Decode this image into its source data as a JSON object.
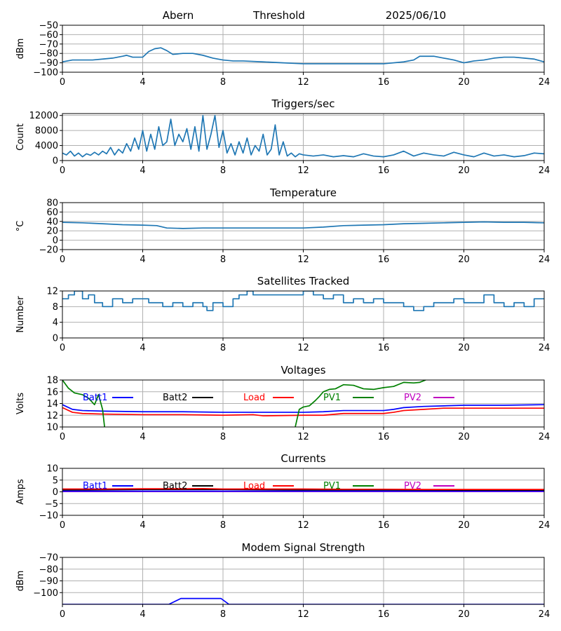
{
  "header": {
    "station": "Abern",
    "mode": "Threshold",
    "date": "2025/06/10"
  },
  "colors": {
    "default_line": "#1f77b4",
    "batt1": "#0000ff",
    "batt2": "#000000",
    "load": "#ff0000",
    "pv1": "#008000",
    "pv2": "#bf00bf",
    "grid": "#b0b0b0"
  },
  "chart_data": [
    {
      "id": "threshold",
      "type": "line",
      "title": "",
      "ylabel": "dBm",
      "xlim": [
        0,
        24
      ],
      "ylim": [
        -100,
        -50
      ],
      "xticks": [
        0,
        4,
        8,
        12,
        16,
        20,
        24
      ],
      "yticks": [
        -100,
        -90,
        -80,
        -70,
        -60,
        -50
      ],
      "grid": true,
      "series": [
        {
          "color_key": "default_line",
          "x": [
            0,
            0.5,
            1,
            1.5,
            2,
            2.5,
            3,
            3.2,
            3.5,
            4,
            4.3,
            4.6,
            4.9,
            5.2,
            5.5,
            6,
            6.5,
            7,
            7.5,
            8,
            8.5,
            9,
            10,
            11,
            12,
            13,
            14,
            15,
            16,
            17,
            17.5,
            17.8,
            18.5,
            19,
            19.5,
            20,
            20.5,
            21,
            21.5,
            22,
            22.5,
            23,
            23.5,
            24
          ],
          "y": [
            -89,
            -87,
            -87,
            -87,
            -86,
            -85,
            -83,
            -82,
            -84,
            -84,
            -78,
            -75,
            -74,
            -77,
            -81,
            -80,
            -80,
            -82,
            -85,
            -87,
            -88,
            -88,
            -89,
            -90,
            -91,
            -91,
            -91,
            -91,
            -91,
            -89,
            -87,
            -83,
            -83,
            -85,
            -87,
            -90,
            -88,
            -87,
            -85,
            -84,
            -84,
            -85,
            -86,
            -89
          ]
        }
      ]
    },
    {
      "id": "triggers",
      "type": "line",
      "title": "Triggers/sec",
      "ylabel": "Count",
      "xlim": [
        0,
        24
      ],
      "ylim": [
        0,
        12500
      ],
      "xticks": [
        0,
        4,
        8,
        12,
        16,
        20,
        24
      ],
      "yticks": [
        0,
        4000,
        8000,
        12000
      ],
      "grid": true,
      "series": [
        {
          "color_key": "default_line",
          "x": [
            0,
            0.2,
            0.4,
            0.6,
            0.8,
            1,
            1.2,
            1.4,
            1.6,
            1.8,
            2,
            2.2,
            2.4,
            2.6,
            2.8,
            3,
            3.2,
            3.4,
            3.6,
            3.8,
            4,
            4.2,
            4.4,
            4.6,
            4.8,
            5,
            5.2,
            5.4,
            5.6,
            5.8,
            6,
            6.2,
            6.4,
            6.6,
            6.8,
            7,
            7.2,
            7.4,
            7.6,
            7.8,
            8,
            8.2,
            8.4,
            8.6,
            8.8,
            9,
            9.2,
            9.4,
            9.6,
            9.8,
            10,
            10.2,
            10.4,
            10.6,
            10.8,
            11,
            11.2,
            11.4,
            11.6,
            11.8,
            12,
            12.5,
            13,
            13.5,
            14,
            14.5,
            15,
            15.5,
            16,
            16.5,
            17,
            17.5,
            18,
            18.5,
            19,
            19.5,
            20,
            20.5,
            21,
            21.5,
            22,
            22.5,
            23,
            23.5,
            24
          ],
          "y": [
            2000,
            1500,
            2500,
            1200,
            2000,
            1000,
            1800,
            1400,
            2200,
            1500,
            2500,
            1800,
            3500,
            1500,
            3000,
            2000,
            4500,
            2500,
            6000,
            3000,
            8000,
            2500,
            7000,
            3000,
            9000,
            4000,
            5000,
            11000,
            4000,
            7000,
            5000,
            8500,
            3000,
            9000,
            2500,
            12000,
            3000,
            7000,
            12000,
            3500,
            8000,
            2000,
            4500,
            1500,
            5000,
            2000,
            6000,
            1500,
            4000,
            2500,
            7000,
            1500,
            3000,
            9500,
            1500,
            5000,
            1200,
            2000,
            1000,
            1800,
            1500,
            1200,
            1500,
            1000,
            1300,
            1000,
            1800,
            1200,
            1000,
            1500,
            2500,
            1200,
            2000,
            1500,
            1200,
            2200,
            1500,
            1000,
            2000,
            1200,
            1500,
            1000,
            1300,
            2000,
            1800
          ]
        }
      ]
    },
    {
      "id": "temperature",
      "type": "line",
      "title": "Temperature",
      "ylabel": "°C",
      "xlim": [
        0,
        24
      ],
      "ylim": [
        -20,
        80
      ],
      "xticks": [
        0,
        4,
        8,
        12,
        16,
        20,
        24
      ],
      "yticks": [
        -20,
        0,
        20,
        40,
        60,
        80
      ],
      "grid": true,
      "series": [
        {
          "color_key": "default_line",
          "x": [
            0,
            1,
            2,
            3,
            4,
            4.7,
            5.2,
            6,
            7,
            8,
            9,
            10,
            11,
            12,
            13,
            14,
            15,
            16,
            17,
            18,
            19,
            20,
            21,
            22,
            23,
            24
          ],
          "y": [
            38,
            37,
            35,
            33,
            32,
            31,
            26,
            25,
            26,
            26,
            26,
            26,
            26,
            26,
            28,
            31,
            32,
            33,
            35,
            36,
            37,
            38,
            39,
            38,
            38,
            37
          ]
        }
      ]
    },
    {
      "id": "satellites",
      "type": "line",
      "title": "Satellites Tracked",
      "ylabel": "Number",
      "xlim": [
        0,
        24
      ],
      "ylim": [
        0,
        12
      ],
      "xticks": [
        0,
        4,
        8,
        12,
        16,
        20,
        24
      ],
      "yticks": [
        0,
        4,
        8,
        12
      ],
      "grid": true,
      "series": [
        {
          "color_key": "default_line",
          "step": true,
          "x": [
            0,
            0.3,
            0.6,
            1,
            1.3,
            1.6,
            2,
            2.5,
            3,
            3.5,
            4,
            4.3,
            5,
            5.5,
            6,
            6.5,
            7,
            7.2,
            7.5,
            8,
            8.5,
            8.8,
            9.2,
            9.5,
            9.8,
            10.5,
            11,
            11.5,
            12,
            12.5,
            13,
            13.5,
            14,
            14.5,
            15,
            15.5,
            16,
            16.5,
            17,
            17.5,
            18,
            18.5,
            19,
            19.5,
            20,
            20.5,
            21,
            21.5,
            22,
            22.5,
            23,
            23.5,
            24
          ],
          "y": [
            10,
            11,
            12,
            10,
            11,
            9,
            8,
            10,
            9,
            10,
            10,
            9,
            8,
            9,
            8,
            9,
            8,
            7,
            9,
            8,
            10,
            11,
            12,
            11,
            11,
            11,
            11,
            11,
            12,
            11,
            10,
            11,
            9,
            10,
            9,
            10,
            9,
            9,
            8,
            7,
            8,
            9,
            9,
            10,
            9,
            9,
            11,
            9,
            8,
            9,
            8,
            10,
            10
          ]
        }
      ]
    },
    {
      "id": "voltages",
      "type": "line",
      "title": "Voltages",
      "ylabel": "Volts",
      "xlim": [
        0,
        24
      ],
      "ylim": [
        10,
        18
      ],
      "xticks": [
        0,
        4,
        8,
        12,
        16,
        20,
        24
      ],
      "yticks": [
        10,
        12,
        14,
        16,
        18
      ],
      "grid": true,
      "legend": [
        "Batt1",
        "Batt2",
        "Load",
        "PV1",
        "PV2"
      ],
      "series": [
        {
          "name": "Batt1",
          "color_key": "batt1",
          "x": [
            0,
            0.5,
            1,
            2,
            4,
            6,
            8,
            10,
            12,
            13,
            14,
            15,
            16,
            16.5,
            17,
            18,
            19,
            20,
            22,
            24
          ],
          "y": [
            13.8,
            13,
            12.8,
            12.7,
            12.6,
            12.6,
            12.5,
            12.5,
            12.5,
            12.6,
            12.8,
            12.8,
            12.8,
            13,
            13.3,
            13.5,
            13.6,
            13.7,
            13.7,
            13.8
          ]
        },
        {
          "name": "Load",
          "color_key": "load",
          "x": [
            0,
            0.5,
            1,
            2,
            4,
            6,
            8,
            9.5,
            10,
            12,
            13,
            14,
            15,
            16,
            16.5,
            17,
            18,
            19,
            20,
            22,
            24
          ],
          "y": [
            13.3,
            12.5,
            12.3,
            12.2,
            12.1,
            12.1,
            12,
            12.1,
            11.9,
            12,
            12,
            12.3,
            12.3,
            12.3,
            12.5,
            12.8,
            13,
            13.2,
            13.2,
            13.2,
            13.2
          ]
        },
        {
          "name": "PV1",
          "color_key": "pv1",
          "x": [
            0,
            0.3,
            0.6,
            1,
            1.3,
            1.6,
            1.8,
            2.0,
            2.1
          ],
          "y": [
            18,
            16.6,
            15.8,
            15.5,
            14.9,
            13.8,
            15.5,
            13,
            10
          ]
        },
        {
          "name": "PV1",
          "color_key": "pv1",
          "x": [
            11.6,
            11.8,
            12,
            12.3,
            12.6,
            12.8,
            13,
            13.3,
            13.6,
            14,
            14.5,
            15,
            15.5,
            16,
            16.5,
            17,
            17.5,
            17.8,
            18.1
          ],
          "y": [
            10,
            13,
            13.4,
            13.6,
            14.5,
            15.2,
            16,
            16.4,
            16.5,
            17.2,
            17.1,
            16.5,
            16.4,
            16.7,
            16.9,
            17.6,
            17.5,
            17.6,
            18
          ]
        }
      ]
    },
    {
      "id": "currents",
      "type": "line",
      "title": "Currents",
      "ylabel": "Amps",
      "xlim": [
        0,
        24
      ],
      "ylim": [
        -10,
        10
      ],
      "xticks": [
        0,
        4,
        8,
        12,
        16,
        20,
        24
      ],
      "yticks": [
        -10,
        -5,
        0,
        5,
        10
      ],
      "grid": true,
      "legend": [
        "Batt1",
        "Batt2",
        "Load",
        "PV1",
        "PV2"
      ],
      "series": [
        {
          "name": "PV2",
          "color_key": "pv2",
          "x": [
            0,
            24
          ],
          "y": [
            0.1,
            0.1
          ]
        },
        {
          "name": "Batt1",
          "color_key": "batt1",
          "x": [
            0,
            24
          ],
          "y": [
            0.3,
            0.3
          ]
        },
        {
          "name": "Batt2",
          "color_key": "batt2",
          "x": [
            0,
            4,
            8,
            12,
            16,
            20,
            24
          ],
          "y": [
            0.8,
            1.0,
            1.0,
            0.8,
            0.8,
            0.7,
            0.7
          ]
        },
        {
          "name": "Load",
          "color_key": "load",
          "x": [
            0,
            2,
            4,
            6,
            7,
            8,
            10,
            12,
            14,
            16,
            18,
            20,
            22,
            24
          ],
          "y": [
            1.2,
            1.2,
            1.3,
            1.3,
            1.4,
            1.2,
            1.2,
            1.2,
            1.1,
            1.1,
            1.0,
            1.0,
            1.0,
            1.0
          ]
        }
      ]
    },
    {
      "id": "modem",
      "type": "line",
      "title": "Modem Signal Strength",
      "ylabel": "dBm",
      "xlim": [
        0,
        24
      ],
      "ylim": [
        -110,
        -70
      ],
      "xticks": [
        0,
        4,
        8,
        12,
        16,
        20,
        24
      ],
      "yticks": [
        -100,
        -90,
        -80,
        -70
      ],
      "grid": true,
      "series": [
        {
          "color_key": "batt1",
          "x": [
            0,
            5.3,
            5.9,
            7.9,
            8.3,
            24
          ],
          "y": [
            -110,
            -110,
            -105,
            -105,
            -110,
            -110
          ]
        }
      ]
    }
  ]
}
